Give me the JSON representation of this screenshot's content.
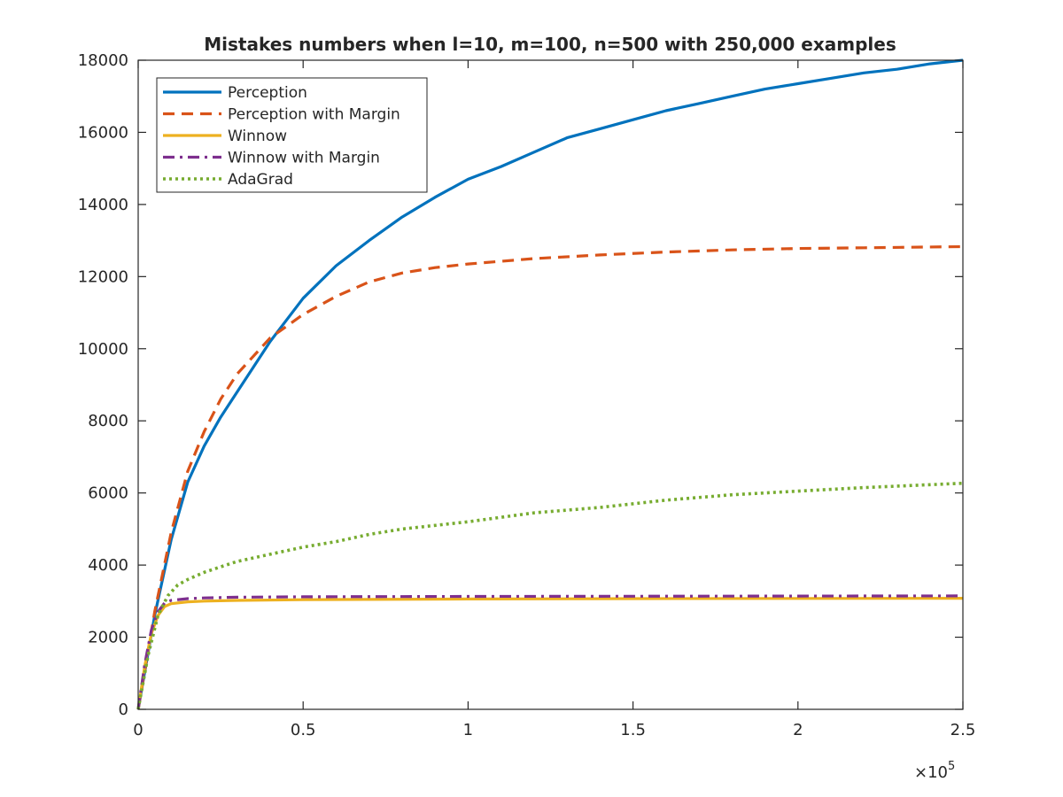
{
  "chart_data": {
    "type": "line",
    "title": "Mistakes numbers when l=10, m=100, n=500 with 250,000 examples",
    "xlabel": "",
    "ylabel": "",
    "xlim": [
      0,
      250000
    ],
    "ylim": [
      0,
      18000
    ],
    "x_exponent_label": "×10",
    "x_exponent_power": "5",
    "x_ticks": [
      0,
      50000,
      100000,
      150000,
      200000,
      250000
    ],
    "x_tick_labels": [
      "0",
      "0.5",
      "1",
      "1.5",
      "2",
      "2.5"
    ],
    "y_ticks": [
      0,
      2000,
      4000,
      6000,
      8000,
      10000,
      12000,
      14000,
      16000,
      18000
    ],
    "y_tick_labels": [
      "0",
      "2000",
      "4000",
      "6000",
      "8000",
      "10000",
      "12000",
      "14000",
      "16000",
      "18000"
    ],
    "grid": false,
    "legend_position": "top-left",
    "series": [
      {
        "name": "Perception",
        "color": "#0072BD",
        "dash": "solid",
        "x": [
          0,
          5000,
          10000,
          15000,
          20000,
          25000,
          30000,
          40000,
          50000,
          60000,
          70000,
          80000,
          90000,
          100000,
          110000,
          120000,
          130000,
          140000,
          150000,
          160000,
          170000,
          180000,
          190000,
          200000,
          210000,
          220000,
          230000,
          240000,
          250000
        ],
        "y": [
          0,
          2600,
          4700,
          6300,
          7300,
          8100,
          8800,
          10200,
          11400,
          12300,
          13000,
          13650,
          14200,
          14700,
          15050,
          15450,
          15850,
          16100,
          16350,
          16600,
          16800,
          17000,
          17200,
          17350,
          17500,
          17650,
          17750,
          17900,
          18000
        ]
      },
      {
        "name": "Perception with Margin",
        "color": "#D95319",
        "dash": "dashed",
        "x": [
          0,
          5000,
          10000,
          15000,
          20000,
          25000,
          30000,
          40000,
          50000,
          60000,
          70000,
          80000,
          90000,
          100000,
          120000,
          140000,
          160000,
          180000,
          200000,
          220000,
          250000
        ],
        "y": [
          0,
          2700,
          4900,
          6600,
          7700,
          8600,
          9300,
          10300,
          10950,
          11450,
          11850,
          12100,
          12250,
          12350,
          12500,
          12600,
          12680,
          12740,
          12780,
          12800,
          12830
        ]
      },
      {
        "name": "Winnow",
        "color": "#EDB120",
        "dash": "solid",
        "x": [
          0,
          2000,
          4000,
          6000,
          8000,
          10000,
          15000,
          20000,
          30000,
          50000,
          100000,
          150000,
          200000,
          250000
        ],
        "y": [
          0,
          1200,
          2100,
          2600,
          2850,
          2930,
          2980,
          3000,
          3020,
          3040,
          3060,
          3070,
          3075,
          3080
        ]
      },
      {
        "name": "Winnow with Margin",
        "color": "#7E2F8E",
        "dash": "dashdot",
        "x": [
          0,
          2000,
          4000,
          6000,
          8000,
          10000,
          15000,
          20000,
          30000,
          50000,
          100000,
          150000,
          200000,
          250000
        ],
        "y": [
          0,
          1250,
          2200,
          2700,
          2950,
          3020,
          3070,
          3090,
          3110,
          3120,
          3130,
          3135,
          3140,
          3145
        ]
      },
      {
        "name": "AdaGrad",
        "color": "#77AC30",
        "dash": "dotted",
        "x": [
          0,
          3000,
          6000,
          9000,
          12000,
          15000,
          20000,
          25000,
          30000,
          40000,
          50000,
          60000,
          70000,
          80000,
          90000,
          100000,
          120000,
          140000,
          160000,
          180000,
          200000,
          220000,
          250000
        ],
        "y": [
          0,
          1500,
          2600,
          3150,
          3450,
          3600,
          3800,
          3950,
          4100,
          4300,
          4500,
          4650,
          4850,
          5000,
          5100,
          5200,
          5450,
          5600,
          5800,
          5950,
          6050,
          6150,
          6270
        ]
      }
    ]
  }
}
